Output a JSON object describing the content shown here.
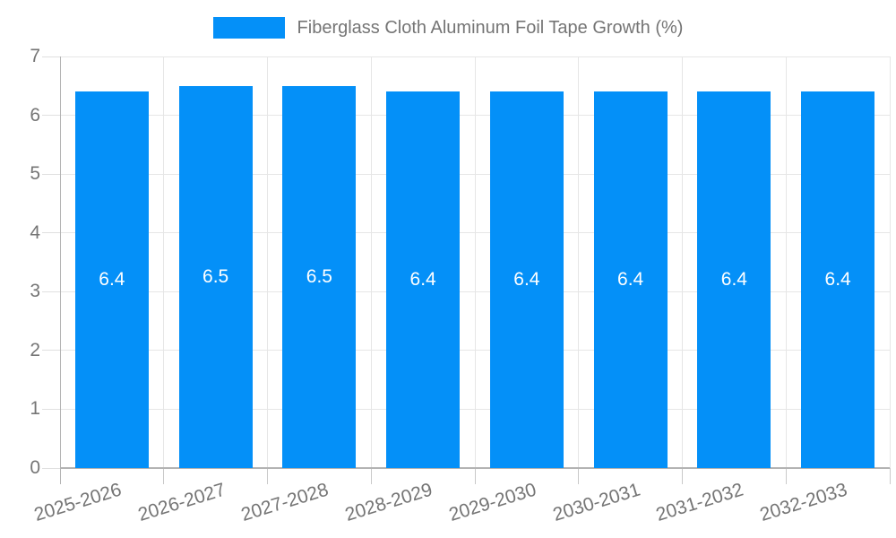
{
  "legend": {
    "label": "Fiberglass Cloth Aluminum Foil Tape Growth (%)"
  },
  "chart_data": {
    "type": "bar",
    "title": "Fiberglass Cloth Aluminum Foil Tape Growth (%)",
    "categories": [
      "2025-2026",
      "2026-2027",
      "2027-2028",
      "2028-2029",
      "2029-2030",
      "2030-2031",
      "2031-2032",
      "2032-2033"
    ],
    "values": [
      6.4,
      6.5,
      6.5,
      6.4,
      6.4,
      6.4,
      6.4,
      6.4
    ],
    "bar_labels": [
      "6.4",
      "6.5",
      "6.5",
      "6.4",
      "6.4",
      "6.4",
      "6.4",
      "6.4"
    ],
    "xlabel": "",
    "ylabel": "",
    "ylim": [
      0,
      7
    ],
    "yticks": [
      0,
      1,
      2,
      3,
      4,
      5,
      6,
      7
    ],
    "grid": true,
    "legend_position": "top",
    "colors": {
      "bar": "#0490f8",
      "bar_label": "#ffffff",
      "axis_text": "#757575",
      "gridline": "#e6e6e6",
      "axis_line": "#b3b3b3"
    }
  }
}
